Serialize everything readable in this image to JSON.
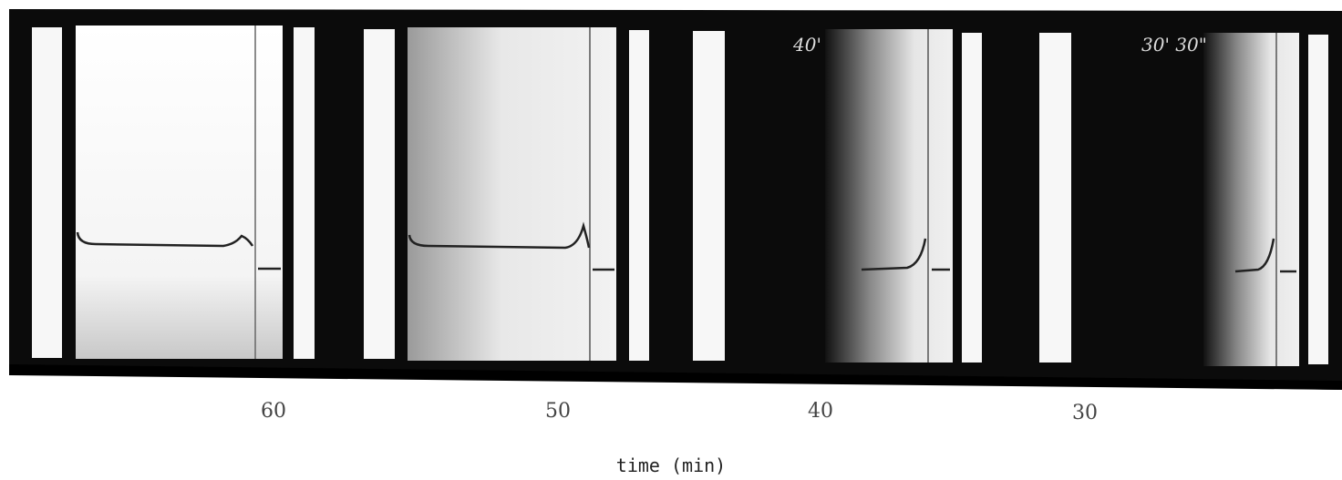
{
  "panels": [
    {
      "label": "60"
    },
    {
      "label": "50"
    },
    {
      "label": "40",
      "note": "40'"
    },
    {
      "label": "30",
      "note": "30' 30\""
    }
  ],
  "axis_title": "time (min)"
}
